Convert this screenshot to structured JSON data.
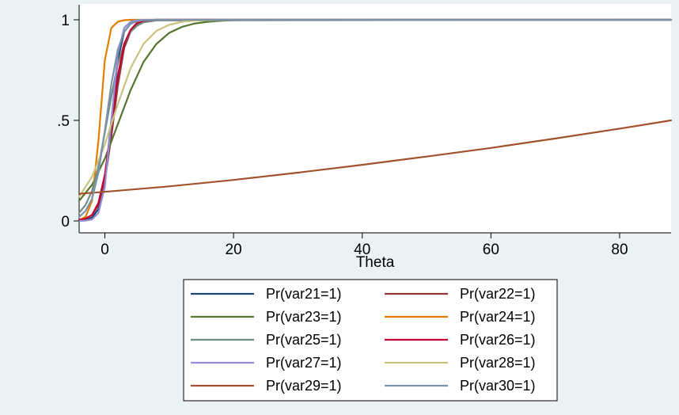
{
  "chart_data": {
    "type": "line",
    "xlabel": "Theta",
    "ylabel": "",
    "xlim": [
      -4,
      88
    ],
    "ylim": [
      0,
      1
    ],
    "xticks": [
      0,
      20,
      40,
      60,
      80
    ],
    "yticks": [
      0,
      0.5,
      1
    ],
    "xtick_labels": [
      "0",
      "20",
      "40",
      "60",
      "80"
    ],
    "ytick_labels": [
      "0",
      ".5",
      "1"
    ],
    "grid": false,
    "legend_position": "bottom",
    "series": [
      {
        "name": "Pr(var21=1)",
        "color": "#1a476f",
        "x": [
          -4,
          -3,
          -2,
          -1,
          0,
          1,
          2,
          3,
          4,
          5,
          6,
          8,
          88
        ],
        "y": [
          0.002,
          0.005,
          0.017,
          0.06,
          0.2,
          0.5,
          0.8,
          0.94,
          0.98,
          0.995,
          0.999,
          1.0,
          1.0
        ]
      },
      {
        "name": "Pr(var22=1)",
        "color": "#90353b",
        "x": [
          -4,
          -3,
          -2,
          -1,
          0,
          1,
          2,
          3,
          4,
          5,
          6,
          8,
          88
        ],
        "y": [
          0.005,
          0.012,
          0.03,
          0.08,
          0.2,
          0.42,
          0.67,
          0.86,
          0.94,
          0.98,
          0.995,
          1.0,
          1.0
        ]
      },
      {
        "name": "Pr(var23=1)",
        "color": "#55752f",
        "x": [
          -4,
          -2,
          0,
          2,
          4,
          6,
          8,
          10,
          12,
          14,
          16,
          18,
          20,
          22,
          88
        ],
        "y": [
          0.1,
          0.18,
          0.31,
          0.48,
          0.65,
          0.79,
          0.88,
          0.935,
          0.965,
          0.982,
          0.99,
          0.995,
          0.998,
          1.0,
          1.0
        ]
      },
      {
        "name": "Pr(var24=1)",
        "color": "#e37e00",
        "x": [
          -4,
          -3,
          -2,
          -1,
          0,
          1,
          2,
          3,
          4,
          88
        ],
        "y": [
          0.005,
          0.02,
          0.1,
          0.4,
          0.8,
          0.96,
          0.99,
          0.998,
          1.0,
          1.0
        ]
      },
      {
        "name": "Pr(var25=1)",
        "color": "#6e8e84",
        "x": [
          -4,
          -3,
          -2,
          -1,
          0,
          1,
          2,
          3,
          4,
          5,
          6,
          8,
          88
        ],
        "y": [
          0.04,
          0.08,
          0.15,
          0.27,
          0.44,
          0.62,
          0.78,
          0.88,
          0.94,
          0.97,
          0.987,
          0.997,
          1.0
        ]
      },
      {
        "name": "Pr(var26=1)",
        "color": "#c10534",
        "x": [
          -4,
          -3,
          -2,
          -1,
          0,
          1,
          2,
          3,
          4,
          5,
          6,
          8,
          88
        ],
        "y": [
          0.005,
          0.012,
          0.03,
          0.09,
          0.23,
          0.47,
          0.72,
          0.88,
          0.95,
          0.985,
          0.995,
          1.0,
          1.0
        ]
      },
      {
        "name": "Pr(var27=1)",
        "color": "#938dd2",
        "x": [
          -4,
          -3,
          -2,
          -1,
          0,
          1,
          2,
          3,
          4,
          5,
          6,
          8,
          88
        ],
        "y": [
          0.0,
          0.002,
          0.008,
          0.04,
          0.17,
          0.5,
          0.83,
          0.96,
          0.99,
          0.998,
          1.0,
          1.0,
          1.0
        ]
      },
      {
        "name": "Pr(var28=1)",
        "color": "#cac27e",
        "x": [
          -4,
          -2,
          0,
          2,
          4,
          6,
          8,
          10,
          12,
          14,
          16,
          18,
          88
        ],
        "y": [
          0.12,
          0.22,
          0.38,
          0.58,
          0.76,
          0.88,
          0.945,
          0.975,
          0.99,
          0.996,
          0.998,
          1.0,
          1.0
        ]
      },
      {
        "name": "Pr(var29=1)",
        "color": "#a0522d",
        "x": [
          -4,
          0,
          10,
          20,
          30,
          40,
          50,
          60,
          70,
          80,
          88
        ],
        "y": [
          0.135,
          0.145,
          0.172,
          0.204,
          0.24,
          0.279,
          0.32,
          0.363,
          0.41,
          0.459,
          0.5
        ]
      },
      {
        "name": "Pr(var30=1)",
        "color": "#7b92a8",
        "x": [
          -4,
          -3,
          -2,
          -1,
          0,
          1,
          2,
          3,
          4,
          5,
          6,
          8,
          88
        ],
        "y": [
          0.02,
          0.05,
          0.11,
          0.24,
          0.45,
          0.68,
          0.85,
          0.94,
          0.98,
          0.993,
          0.998,
          1.0,
          1.0
        ]
      }
    ]
  }
}
